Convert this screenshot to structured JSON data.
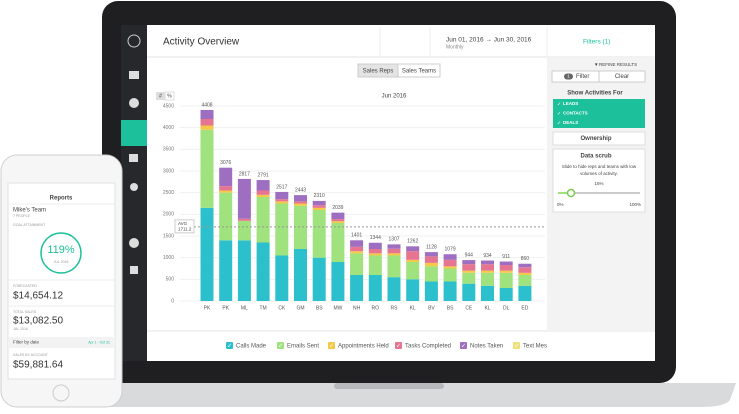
{
  "app": {
    "title": "Activity Overview",
    "date_range": "Jun 01, 2016 → Jun 30, 2016",
    "period": "Monthly",
    "filters": "Filters (1)",
    "tabs": [
      "Sales Reps",
      "Sales Teams"
    ],
    "units": [
      "#",
      "%"
    ]
  },
  "chart_data": {
    "type": "bar",
    "stacked": true,
    "title": "Jun 2016",
    "categories": [
      "PK",
      "PK",
      "ML",
      "TM",
      "CK",
      "GM",
      "BS",
      "MW",
      "NH",
      "RO",
      "RS",
      "KL",
      "BV",
      "BS",
      "CE",
      "KL",
      "DL",
      "ED"
    ],
    "series": [
      {
        "name": "Calls Made",
        "color": "#2cc0cc",
        "values": [
          2150,
          1400,
          1400,
          1350,
          1050,
          1200,
          1000,
          900,
          600,
          600,
          550,
          500,
          450,
          450,
          400,
          350,
          300,
          350
        ]
      },
      {
        "name": "Emails Sent",
        "color": "#9fe27e",
        "values": [
          1800,
          1100,
          450,
          1050,
          1200,
          1000,
          1100,
          900,
          500,
          450,
          500,
          400,
          350,
          300,
          250,
          300,
          350,
          250
        ]
      },
      {
        "name": "Appointments Held",
        "color": "#f4c94a",
        "values": [
          100,
          50,
          0,
          50,
          50,
          50,
          50,
          40,
          50,
          50,
          50,
          50,
          80,
          50,
          50,
          50,
          50,
          50
        ]
      },
      {
        "name": "Tasks Completed",
        "color": "#e57590",
        "values": [
          150,
          100,
          50,
          100,
          50,
          50,
          60,
          50,
          100,
          100,
          107,
          200,
          150,
          150,
          150,
          150,
          130,
          130
        ]
      },
      {
        "name": "Notes Taken",
        "color": "#9e6fc0",
        "values": [
          208,
          426,
          917,
          241,
          167,
          143,
          100,
          149,
          151,
          144,
          100,
          112,
          98,
          129,
          94,
          84,
          81,
          80
        ]
      },
      {
        "name": "Text Mes",
        "color": "#efe07a",
        "values": [
          0,
          0,
          0,
          0,
          0,
          0,
          0,
          0,
          0,
          0,
          0,
          0,
          0,
          0,
          0,
          0,
          0,
          0
        ]
      }
    ],
    "totals": [
      4408,
      3076,
      2817,
      2791,
      2517,
      2443,
      2310,
      2039,
      1401,
      1344,
      1307,
      1262,
      1128,
      1079,
      944,
      934,
      911,
      860
    ],
    "average": {
      "label": "AVG",
      "value": 1711.2
    },
    "ylim": [
      0,
      4500
    ],
    "yticks": [
      0,
      500,
      1000,
      1500,
      2000,
      2500,
      3000,
      3500,
      4000,
      4500
    ],
    "grid": true
  },
  "refine": {
    "heading": "REFINE RESULTS",
    "filter_count": "1",
    "filter": "Filter",
    "clear": "Clear",
    "show_for": "Show Activities For",
    "options": [
      "LEADS",
      "CONTACTS",
      "DEALS"
    ],
    "ownership": "Ownership",
    "scrub": "Data scrub",
    "scrub_note": [
      "Slide to hide reps and teams with low",
      "volumes of activity."
    ],
    "scrub_value": "16%",
    "scrub_min": "0%",
    "scrub_max": "100%"
  },
  "phone": {
    "title": "Reports",
    "team": "Mike's Team",
    "people": "7 PEOPLE",
    "goal": "GOAL ATTAINMENT",
    "goal_value": "119%",
    "goal_period": "JUL 2016",
    "forecast_label": "FORECASTED",
    "forecast": "$14,654.12",
    "sales_label": "TOTAL SALES",
    "sales": "$13,082.50",
    "sales_period": "JUL 2016",
    "filter": "Filter by date",
    "filter_range": "Apr 1 - Oct 31",
    "account_label": "SALES BY ACCOUNT",
    "account": "$59,881.64"
  }
}
